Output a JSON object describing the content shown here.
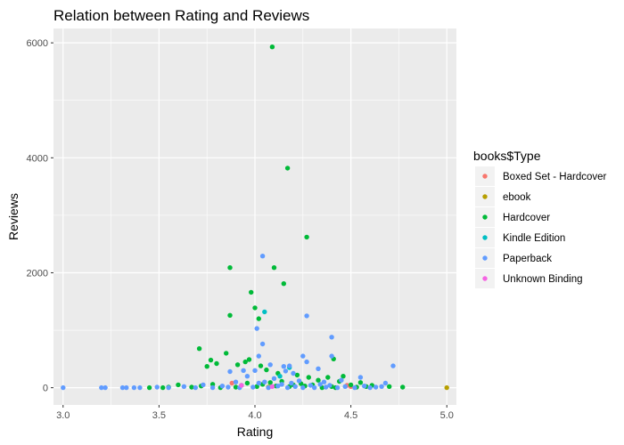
{
  "chart_data": {
    "type": "scatter",
    "title": "Relation between Rating and Reviews",
    "xlabel": "Rating",
    "ylabel": "Reviews",
    "xlim": [
      2.95,
      5.05
    ],
    "ylim": [
      -300,
      6250
    ],
    "x_ticks": [
      3.0,
      3.5,
      4.0,
      4.5,
      5.0
    ],
    "x_tick_labels": [
      "3.0",
      "3.5",
      "4.0",
      "4.5",
      "5.0"
    ],
    "y_ticks": [
      0,
      2000,
      4000,
      6000
    ],
    "y_tick_labels": [
      "0",
      "2000",
      "4000",
      "6000"
    ],
    "grid": true,
    "legend": {
      "title": "books$Type",
      "position": "right"
    },
    "series": [
      {
        "name": "Boxed Set - Hardcover",
        "color": "#F8766D",
        "points": [
          [
            3.88,
            80
          ],
          [
            4.48,
            40
          ],
          [
            4.5,
            20
          ]
        ]
      },
      {
        "name": "ebook",
        "color": "#B79F00",
        "points": [
          [
            4.07,
            10
          ],
          [
            5.0,
            0
          ]
        ]
      },
      {
        "name": "Hardcover",
        "color": "#00BA38",
        "points": [
          [
            4.09,
            5930
          ],
          [
            4.17,
            3820
          ],
          [
            4.27,
            2620
          ],
          [
            3.87,
            2090
          ],
          [
            4.1,
            2090
          ],
          [
            4.15,
            1810
          ],
          [
            3.98,
            1660
          ],
          [
            4.0,
            1390
          ],
          [
            3.87,
            1260
          ],
          [
            4.02,
            1200
          ],
          [
            3.71,
            680
          ],
          [
            3.77,
            480
          ],
          [
            3.75,
            370
          ],
          [
            3.8,
            420
          ],
          [
            3.85,
            600
          ],
          [
            3.91,
            400
          ],
          [
            3.95,
            450
          ],
          [
            3.97,
            490
          ],
          [
            4.03,
            380
          ],
          [
            4.06,
            310
          ],
          [
            4.12,
            250
          ],
          [
            4.22,
            220
          ],
          [
            4.28,
            180
          ],
          [
            4.33,
            130
          ],
          [
            4.38,
            180
          ],
          [
            4.41,
            500
          ],
          [
            4.44,
            110
          ],
          [
            4.46,
            200
          ],
          [
            4.5,
            50
          ],
          [
            4.55,
            90
          ],
          [
            4.61,
            40
          ],
          [
            4.7,
            20
          ],
          [
            4.77,
            10
          ],
          [
            3.45,
            0
          ],
          [
            3.52,
            0
          ],
          [
            3.55,
            10
          ],
          [
            3.6,
            50
          ],
          [
            3.67,
            10
          ],
          [
            3.72,
            30
          ],
          [
            3.78,
            60
          ],
          [
            3.82,
            0
          ],
          [
            3.9,
            10
          ],
          [
            3.93,
            40
          ],
          [
            3.96,
            80
          ],
          [
            4.01,
            20
          ],
          [
            4.04,
            60
          ],
          [
            4.08,
            90
          ],
          [
            4.11,
            30
          ],
          [
            4.14,
            110
          ],
          [
            4.18,
            20
          ],
          [
            4.2,
            50
          ],
          [
            4.24,
            70
          ],
          [
            4.26,
            30
          ],
          [
            4.3,
            50
          ],
          [
            4.35,
            0
          ],
          [
            4.4,
            20
          ],
          [
            4.42,
            0
          ],
          [
            4.53,
            10
          ],
          [
            4.58,
            20
          ]
        ]
      },
      {
        "name": "Kindle Edition",
        "color": "#00BFC4",
        "points": [
          [
            4.05,
            1320
          ],
          [
            4.13,
            200
          ],
          [
            4.18,
            350
          ]
        ]
      },
      {
        "name": "Paperback",
        "color": "#619CFF",
        "points": [
          [
            4.04,
            2290
          ],
          [
            4.27,
            1250
          ],
          [
            4.01,
            1030
          ],
          [
            4.04,
            760
          ],
          [
            4.4,
            880
          ],
          [
            4.4,
            550
          ],
          [
            4.02,
            550
          ],
          [
            4.15,
            370
          ],
          [
            4.18,
            380
          ],
          [
            4.25,
            550
          ],
          [
            4.27,
            450
          ],
          [
            4.33,
            330
          ],
          [
            4.2,
            250
          ],
          [
            3.87,
            280
          ],
          [
            3.94,
            300
          ],
          [
            4.0,
            300
          ],
          [
            4.08,
            400
          ],
          [
            4.16,
            290
          ],
          [
            4.72,
            380
          ],
          [
            4.55,
            180
          ],
          [
            4.45,
            130
          ],
          [
            4.36,
            100
          ],
          [
            3.0,
            0
          ],
          [
            3.2,
            0
          ],
          [
            3.22,
            0
          ],
          [
            3.31,
            0
          ],
          [
            3.33,
            0
          ],
          [
            3.37,
            0
          ],
          [
            3.4,
            0
          ],
          [
            3.49,
            10
          ],
          [
            3.55,
            0
          ],
          [
            3.63,
            20
          ],
          [
            3.69,
            0
          ],
          [
            3.73,
            50
          ],
          [
            3.78,
            0
          ],
          [
            3.83,
            30
          ],
          [
            3.86,
            10
          ],
          [
            3.9,
            100
          ],
          [
            3.92,
            0
          ],
          [
            3.96,
            200
          ],
          [
            3.99,
            10
          ],
          [
            4.02,
            80
          ],
          [
            4.05,
            100
          ],
          [
            4.07,
            0
          ],
          [
            4.1,
            160
          ],
          [
            4.12,
            30
          ],
          [
            4.14,
            60
          ],
          [
            4.17,
            0
          ],
          [
            4.19,
            80
          ],
          [
            4.21,
            20
          ],
          [
            4.23,
            120
          ],
          [
            4.25,
            0
          ],
          [
            4.29,
            40
          ],
          [
            4.31,
            0
          ],
          [
            4.34,
            60
          ],
          [
            4.37,
            10
          ],
          [
            4.39,
            40
          ],
          [
            4.43,
            0
          ],
          [
            4.47,
            20
          ],
          [
            4.52,
            0
          ],
          [
            4.57,
            30
          ],
          [
            4.6,
            0
          ],
          [
            4.63,
            10
          ],
          [
            4.66,
            20
          ],
          [
            4.68,
            80
          ]
        ]
      },
      {
        "name": "Unknown Binding",
        "color": "#F564E3",
        "points": [
          [
            3.93,
            40
          ],
          [
            4.09,
            20
          ]
        ]
      }
    ]
  }
}
